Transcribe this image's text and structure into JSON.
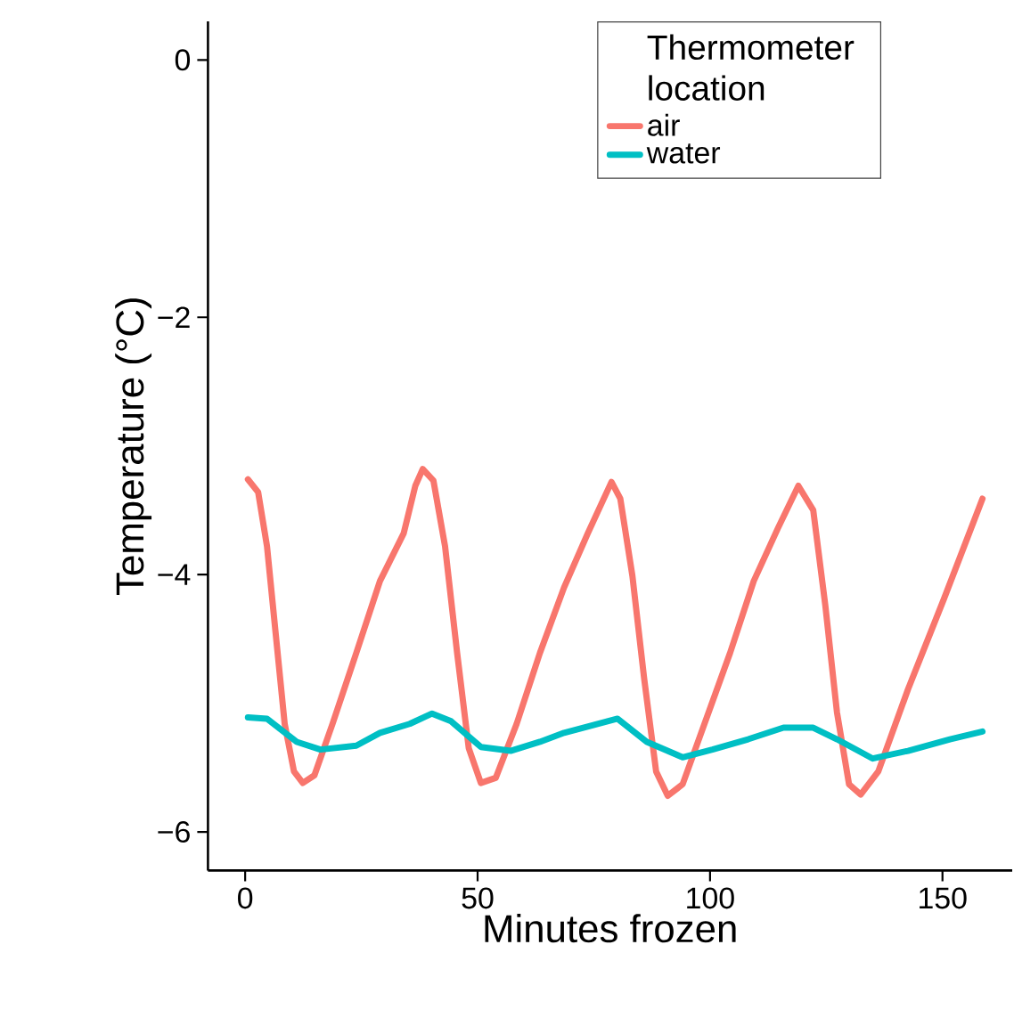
{
  "chart_data": {
    "type": "line",
    "xlabel": "Minutes frozen",
    "ylabel": "Temperature (°C)",
    "legend_title": "Thermometer location",
    "xlim": [
      -8,
      165
    ],
    "ylim": [
      -6.3,
      0.3
    ],
    "xticks": [
      0,
      50,
      100,
      150
    ],
    "yticks": [
      {
        "value": -6,
        "label": "−6"
      },
      {
        "value": -4,
        "label": "−4"
      },
      {
        "value": -2,
        "label": "−2"
      },
      0
    ],
    "grid": false,
    "legend": "top right",
    "marker": "none",
    "line_style": "solid",
    "series": [
      {
        "name": "air",
        "color": "#f8766d",
        "x": [
          0.6,
          2.8,
          4.7,
          6.6,
          8.5,
          10.5,
          12.4,
          14.9,
          18.8,
          23.9,
          29.0,
          34.1,
          36.6,
          38.2,
          40.5,
          43.0,
          45.6,
          48.1,
          50.7,
          53.9,
          58.4,
          63.4,
          68.6,
          73.7,
          78.8,
          80.7,
          83.3,
          85.8,
          88.4,
          90.9,
          94.1,
          99.2,
          104.3,
          109.4,
          114.6,
          119.0,
          122.2,
          124.8,
          127.3,
          129.9,
          132.4,
          136.2,
          142.6,
          150.3,
          158.6
        ],
        "values": [
          -3.26,
          -3.36,
          -3.78,
          -4.47,
          -5.16,
          -5.53,
          -5.62,
          -5.56,
          -5.16,
          -4.61,
          -4.05,
          -3.68,
          -3.31,
          -3.18,
          -3.27,
          -3.78,
          -4.61,
          -5.35,
          -5.62,
          -5.58,
          -5.16,
          -4.61,
          -4.1,
          -3.68,
          -3.28,
          -3.41,
          -4.01,
          -4.8,
          -5.53,
          -5.72,
          -5.63,
          -5.12,
          -4.61,
          -4.05,
          -3.64,
          -3.31,
          -3.5,
          -4.24,
          -5.07,
          -5.63,
          -5.71,
          -5.53,
          -4.89,
          -4.19,
          -3.41
        ]
      },
      {
        "name": "water",
        "color": "#00bfc4",
        "x": [
          0.6,
          4.7,
          11.1,
          16.2,
          23.9,
          29.0,
          35.4,
          40.2,
          44.3,
          50.7,
          57.1,
          63.4,
          68.6,
          74.9,
          80.1,
          86.4,
          94.1,
          100.5,
          108.2,
          115.8,
          122.2,
          127.3,
          135.0,
          142.6,
          151.6,
          158.6
        ],
        "values": [
          -5.11,
          -5.12,
          -5.3,
          -5.36,
          -5.33,
          -5.23,
          -5.16,
          -5.08,
          -5.14,
          -5.34,
          -5.37,
          -5.3,
          -5.23,
          -5.17,
          -5.12,
          -5.3,
          -5.42,
          -5.36,
          -5.28,
          -5.19,
          -5.19,
          -5.28,
          -5.43,
          -5.37,
          -5.28,
          -5.22
        ]
      }
    ]
  }
}
